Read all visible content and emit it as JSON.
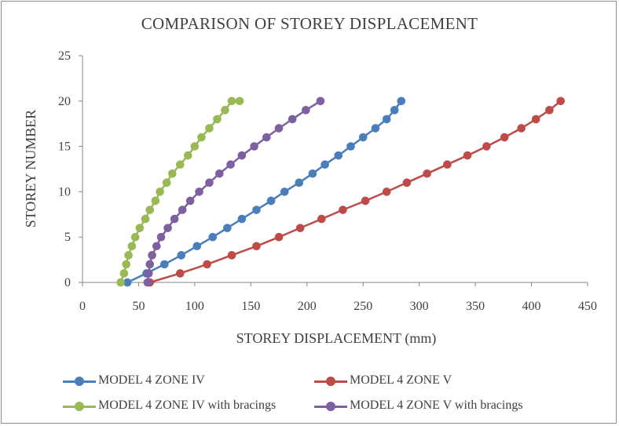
{
  "chart_data": {
    "type": "line",
    "title": "COMPARISON OF STOREY DISPLACEMENT",
    "xlabel": "STOREY DISPLACEMENT (mm)",
    "ylabel": "STOREY NUMBER",
    "xlim": [
      0,
      450
    ],
    "ylim": [
      0,
      25
    ],
    "xticks": [
      0,
      50,
      100,
      150,
      200,
      250,
      300,
      350,
      400,
      450
    ],
    "yticks": [
      0,
      5,
      10,
      15,
      20,
      25
    ],
    "grid": false,
    "legend_position": "bottom",
    "series": [
      {
        "name": "MODEL 4 ZONE  IV",
        "color": "#4a7ebb",
        "x": [
          40,
          57,
          73,
          88,
          102,
          116,
          129,
          142,
          155,
          168,
          180,
          193,
          205,
          216,
          228,
          239,
          250,
          261,
          271,
          278,
          284
        ],
        "y": [
          0,
          1,
          2,
          3,
          4,
          5,
          6,
          7,
          8,
          9,
          10,
          11,
          12,
          13,
          14,
          15,
          16,
          17,
          18,
          19,
          20
        ]
      },
      {
        "name": "MODEL 4 ZONE V",
        "color": "#be4b48",
        "x": [
          60,
          87,
          111,
          133,
          155,
          175,
          194,
          213,
          232,
          252,
          271,
          289,
          307,
          325,
          343,
          360,
          376,
          391,
          404,
          416,
          426
        ],
        "y": [
          0,
          1,
          2,
          3,
          4,
          5,
          6,
          7,
          8,
          9,
          10,
          11,
          12,
          13,
          14,
          15,
          16,
          17,
          18,
          19,
          20
        ]
      },
      {
        "name": "MODEL 4 ZONE  IV with bracings",
        "color": "#98b954",
        "x": [
          34,
          37,
          39,
          41,
          44,
          47,
          51,
          56,
          60,
          65,
          69,
          75,
          80,
          87,
          94,
          100,
          106,
          113,
          120,
          127,
          133,
          140
        ],
        "y": [
          0,
          1,
          2,
          3,
          4,
          5,
          6,
          7,
          8,
          9,
          10,
          11,
          12,
          13,
          14,
          15,
          16,
          17,
          18,
          19,
          20,
          20
        ]
      },
      {
        "name": "MODEL 4 ZONE V with bracings",
        "color": "#7d60a0",
        "x": [
          58,
          59,
          60,
          62,
          66,
          70,
          76,
          82,
          89,
          96,
          104,
          113,
          122,
          132,
          142,
          153,
          164,
          175,
          187,
          199,
          212
        ],
        "y": [
          0,
          1,
          2,
          3,
          4,
          5,
          6,
          7,
          8,
          9,
          10,
          11,
          12,
          13,
          14,
          15,
          16,
          17,
          18,
          19,
          20
        ]
      }
    ]
  }
}
